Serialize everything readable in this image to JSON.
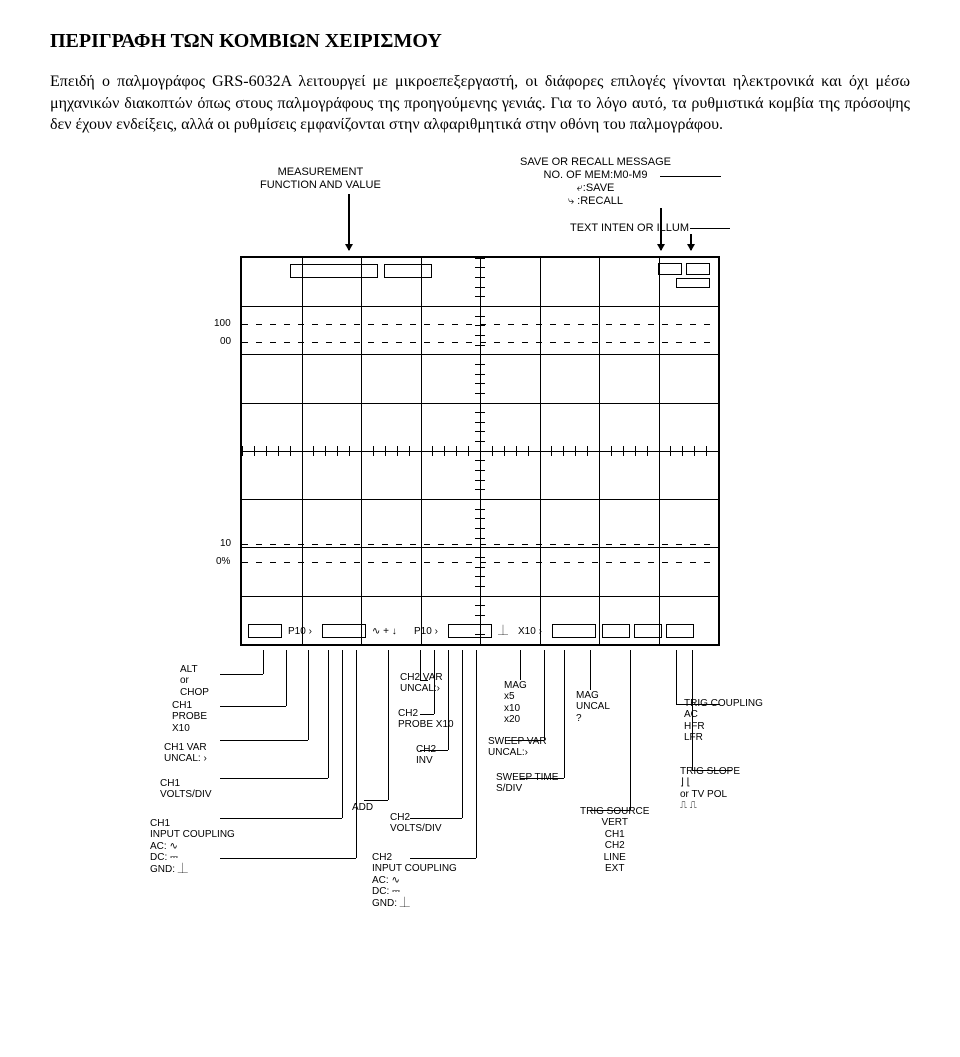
{
  "heading": "ΠΕΡΙΓΡΑΦΗ ΤΩΝ ΚΟΜΒΙΩΝ ΧΕΙΡΙΣΜΟΥ",
  "intro": "Επειδή ο παλμογράφος GRS-6032A λειτουργεί με μικροεπεξεργαστή, οι διάφορες επιλογές γίνονται ηλεκτρονικά και όχι μέσω μηχανικών διακοπτών όπως στους παλμογράφους της προηγούμενης γενιάς. Για το λόγο αυτό, τα ρυθμιστικά κομβία της πρόσοψης δεν έχουν ενδείξεις, αλλά οι ρυθμίσεις εμφανίζονται στην αλφαριθμητικά στην οθόνη του παλμογράφου.",
  "top": {
    "meas": "MEASUREMENT\nFUNCTION AND VALUE",
    "save": "SAVE OR RECALL MESSAGE\nNO. OF MEM:M0-M9\n⤶:SAVE\n⤷ :RECALL",
    "inten": "TEXT INTEN OR ILLUM"
  },
  "scope": {
    "y100": "100",
    "y00": "00",
    "y10": "10",
    "y0pct": "0%",
    "p10a": "P10 ›",
    "sym1": "∿ + ↓",
    "p10b": "P10 ›",
    "symgnd": "⏊",
    "x10": "X10 ›"
  },
  "bottom": {
    "altchop": "ALT\nor\nCHOP",
    "ch1probe": "CH1\nPROBE\nX10",
    "ch1var": "CH1 VAR\nUNCAL: ›",
    "ch1vdiv": "CH1\nVOLTS/DIV",
    "ch1coup": "CH1\nINPUT COUPLING\nAC: ∿\nDC: ⎓\nGND: ⏊",
    "add": "ADD",
    "ch2var": "CH2 VAR\nUNCAL:›",
    "ch2probe": "CH2\nPROBE X10",
    "ch2inv": "CH2\nINV",
    "ch2vdiv": "CH2\nVOLTS/DIV",
    "ch2coup": "CH2\nINPUT COUPLING\nAC: ∿\nDC: ⎓\nGND: ⏊",
    "mag": "MAG\nx5\nx10\nx20",
    "sweepvar": "SWEEP VAR\nUNCAL:›",
    "sweeptime": "SWEEP TIME\nS/DIV",
    "maguncal": "MAG\nUNCAL\n?",
    "trigsrc": "TRIG SOURCE\nVERT\nCH1\nCH2\nLINE\nEXT",
    "trigcoup": "TRIG COUPLING\nAC\nHFR\nLFR",
    "trigslope": "TRIG SLOPE\n⌋ ⌊\nor TV POL\n⎍ ⎍"
  },
  "colors": {
    "bg": "#ffffff",
    "fg": "#000000"
  }
}
